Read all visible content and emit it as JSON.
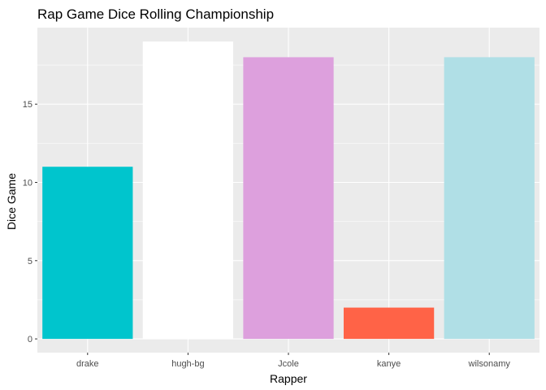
{
  "chart_data": {
    "type": "bar",
    "title": "Rap Game Dice Rolling Championship",
    "xlabel": "Rapper",
    "ylabel": "Dice Game",
    "categories": [
      "drake",
      "hugh-bg",
      "Jcole",
      "kanye",
      "wilsonamy"
    ],
    "values": [
      11,
      19,
      18,
      2,
      18
    ],
    "colors": [
      "#00C5CD",
      "#FFFFFF",
      "#DDA0DD",
      "#FF6347",
      "#B0DFE6"
    ],
    "yticks": [
      0,
      5,
      10,
      15
    ],
    "ylim": [
      0,
      19
    ],
    "grid": true,
    "legend": "none",
    "panel_background": "#EBEBEB",
    "grid_color": "#FFFFFF"
  }
}
